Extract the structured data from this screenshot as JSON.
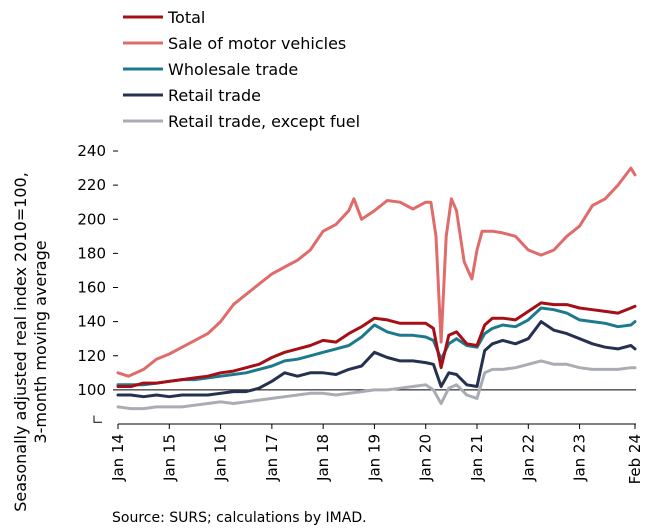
{
  "chart_data": {
    "type": "line",
    "ylabel_line1": "Seasonally adjusted real index 2010=100,",
    "ylabel_line2": "3-month moving average",
    "source": "Source: SURS; calculations by IMAD.",
    "ylim": [
      80,
      240
    ],
    "y_ticks": [
      240,
      220,
      200,
      180,
      160,
      140,
      120,
      100
    ],
    "y_tick_labels": [
      "240",
      "220",
      "200",
      "180",
      "160",
      "140",
      "120",
      "100"
    ],
    "x_range": [
      2014.0,
      2024.1
    ],
    "x_ticks": [
      2014,
      2015,
      2016,
      2017,
      2018,
      2019,
      2020,
      2021,
      2022,
      2023,
      2024.08
    ],
    "x_tick_labels": [
      "Jan 14",
      "Jan 15",
      "Jan 16",
      "Jan 17",
      "Jan 18",
      "Jan 19",
      "Jan 20",
      "Jan 21",
      "Jan 22",
      "Jan 23",
      "Feb 24"
    ],
    "reference_line": 100,
    "grid": false,
    "legend_position": "top-left",
    "series": [
      {
        "name": "Total",
        "color": "#A50F15",
        "points": [
          [
            2014.0,
            102
          ],
          [
            2014.25,
            102
          ],
          [
            2014.5,
            104
          ],
          [
            2014.75,
            104
          ],
          [
            2015.0,
            105
          ],
          [
            2015.25,
            106
          ],
          [
            2015.5,
            107
          ],
          [
            2015.75,
            108
          ],
          [
            2016.0,
            110
          ],
          [
            2016.25,
            111
          ],
          [
            2016.5,
            113
          ],
          [
            2016.75,
            115
          ],
          [
            2017.0,
            119
          ],
          [
            2017.25,
            122
          ],
          [
            2017.5,
            124
          ],
          [
            2017.75,
            126
          ],
          [
            2018.0,
            129
          ],
          [
            2018.25,
            128
          ],
          [
            2018.5,
            133
          ],
          [
            2018.75,
            137
          ],
          [
            2019.0,
            142
          ],
          [
            2019.25,
            141
          ],
          [
            2019.5,
            139
          ],
          [
            2019.75,
            139
          ],
          [
            2020.0,
            139
          ],
          [
            2020.15,
            136
          ],
          [
            2020.3,
            113
          ],
          [
            2020.45,
            132
          ],
          [
            2020.6,
            134
          ],
          [
            2020.8,
            127
          ],
          [
            2021.0,
            126
          ],
          [
            2021.15,
            138
          ],
          [
            2021.3,
            142
          ],
          [
            2021.5,
            142
          ],
          [
            2021.75,
            141
          ],
          [
            2022.0,
            146
          ],
          [
            2022.25,
            151
          ],
          [
            2022.5,
            150
          ],
          [
            2022.75,
            150
          ],
          [
            2023.0,
            148
          ],
          [
            2023.25,
            147
          ],
          [
            2023.5,
            146
          ],
          [
            2023.75,
            145
          ],
          [
            2024.0,
            148
          ],
          [
            2024.08,
            149
          ]
        ]
      },
      {
        "name": "Sale of motor vehicles",
        "color": "#E06B6B",
        "points": [
          [
            2014.0,
            110
          ],
          [
            2014.2,
            108
          ],
          [
            2014.5,
            112
          ],
          [
            2014.75,
            118
          ],
          [
            2015.0,
            121
          ],
          [
            2015.25,
            125
          ],
          [
            2015.5,
            129
          ],
          [
            2015.75,
            133
          ],
          [
            2016.0,
            140
          ],
          [
            2016.25,
            150
          ],
          [
            2016.5,
            156
          ],
          [
            2016.75,
            162
          ],
          [
            2017.0,
            168
          ],
          [
            2017.25,
            172
          ],
          [
            2017.5,
            176
          ],
          [
            2017.75,
            182
          ],
          [
            2018.0,
            193
          ],
          [
            2018.25,
            197
          ],
          [
            2018.5,
            205
          ],
          [
            2018.6,
            212
          ],
          [
            2018.75,
            200
          ],
          [
            2019.0,
            205
          ],
          [
            2019.25,
            211
          ],
          [
            2019.5,
            210
          ],
          [
            2019.75,
            206
          ],
          [
            2020.0,
            210
          ],
          [
            2020.1,
            210
          ],
          [
            2020.2,
            190
          ],
          [
            2020.3,
            128
          ],
          [
            2020.4,
            190
          ],
          [
            2020.5,
            212
          ],
          [
            2020.6,
            205
          ],
          [
            2020.75,
            175
          ],
          [
            2020.9,
            165
          ],
          [
            2021.0,
            182
          ],
          [
            2021.1,
            193
          ],
          [
            2021.3,
            193
          ],
          [
            2021.5,
            192
          ],
          [
            2021.75,
            190
          ],
          [
            2022.0,
            182
          ],
          [
            2022.25,
            179
          ],
          [
            2022.5,
            182
          ],
          [
            2022.75,
            190
          ],
          [
            2023.0,
            196
          ],
          [
            2023.25,
            208
          ],
          [
            2023.5,
            212
          ],
          [
            2023.75,
            220
          ],
          [
            2024.0,
            230
          ],
          [
            2024.08,
            226
          ]
        ]
      },
      {
        "name": "Wholesale trade",
        "color": "#1D7A8C",
        "points": [
          [
            2014.0,
            103
          ],
          [
            2014.25,
            103
          ],
          [
            2014.5,
            103
          ],
          [
            2014.75,
            104
          ],
          [
            2015.0,
            105
          ],
          [
            2015.25,
            106
          ],
          [
            2015.5,
            106
          ],
          [
            2015.75,
            107
          ],
          [
            2016.0,
            108
          ],
          [
            2016.25,
            109
          ],
          [
            2016.5,
            110
          ],
          [
            2016.75,
            112
          ],
          [
            2017.0,
            114
          ],
          [
            2017.25,
            117
          ],
          [
            2017.5,
            118
          ],
          [
            2017.75,
            120
          ],
          [
            2018.0,
            122
          ],
          [
            2018.25,
            124
          ],
          [
            2018.5,
            126
          ],
          [
            2018.75,
            131
          ],
          [
            2019.0,
            138
          ],
          [
            2019.25,
            134
          ],
          [
            2019.5,
            132
          ],
          [
            2019.75,
            132
          ],
          [
            2020.0,
            131
          ],
          [
            2020.15,
            129
          ],
          [
            2020.3,
            118
          ],
          [
            2020.45,
            127
          ],
          [
            2020.6,
            130
          ],
          [
            2020.8,
            126
          ],
          [
            2021.0,
            125
          ],
          [
            2021.15,
            133
          ],
          [
            2021.3,
            136
          ],
          [
            2021.5,
            138
          ],
          [
            2021.75,
            137
          ],
          [
            2022.0,
            141
          ],
          [
            2022.25,
            148
          ],
          [
            2022.5,
            147
          ],
          [
            2022.75,
            145
          ],
          [
            2023.0,
            141
          ],
          [
            2023.25,
            140
          ],
          [
            2023.5,
            139
          ],
          [
            2023.75,
            137
          ],
          [
            2024.0,
            138
          ],
          [
            2024.08,
            140
          ]
        ]
      },
      {
        "name": "Retail trade",
        "color": "#26304F",
        "points": [
          [
            2014.0,
            97
          ],
          [
            2014.25,
            97
          ],
          [
            2014.5,
            96
          ],
          [
            2014.75,
            97
          ],
          [
            2015.0,
            96
          ],
          [
            2015.25,
            97
          ],
          [
            2015.5,
            97
          ],
          [
            2015.75,
            97
          ],
          [
            2016.0,
            98
          ],
          [
            2016.25,
            99
          ],
          [
            2016.5,
            99
          ],
          [
            2016.75,
            101
          ],
          [
            2017.0,
            105
          ],
          [
            2017.25,
            110
          ],
          [
            2017.5,
            108
          ],
          [
            2017.75,
            110
          ],
          [
            2018.0,
            110
          ],
          [
            2018.25,
            109
          ],
          [
            2018.5,
            112
          ],
          [
            2018.75,
            114
          ],
          [
            2019.0,
            122
          ],
          [
            2019.25,
            119
          ],
          [
            2019.5,
            117
          ],
          [
            2019.75,
            117
          ],
          [
            2020.0,
            116
          ],
          [
            2020.15,
            115
          ],
          [
            2020.3,
            102
          ],
          [
            2020.45,
            110
          ],
          [
            2020.6,
            109
          ],
          [
            2020.8,
            103
          ],
          [
            2021.0,
            102
          ],
          [
            2021.15,
            123
          ],
          [
            2021.3,
            127
          ],
          [
            2021.5,
            129
          ],
          [
            2021.75,
            127
          ],
          [
            2022.0,
            130
          ],
          [
            2022.25,
            140
          ],
          [
            2022.5,
            135
          ],
          [
            2022.75,
            133
          ],
          [
            2023.0,
            130
          ],
          [
            2023.25,
            127
          ],
          [
            2023.5,
            125
          ],
          [
            2023.75,
            124
          ],
          [
            2024.0,
            126
          ],
          [
            2024.08,
            124
          ]
        ]
      },
      {
        "name": "Retail trade, except fuel",
        "color": "#A9ADB3",
        "points": [
          [
            2014.0,
            90
          ],
          [
            2014.25,
            89
          ],
          [
            2014.5,
            89
          ],
          [
            2014.75,
            90
          ],
          [
            2015.0,
            90
          ],
          [
            2015.25,
            90
          ],
          [
            2015.5,
            91
          ],
          [
            2015.75,
            92
          ],
          [
            2016.0,
            93
          ],
          [
            2016.25,
            92
          ],
          [
            2016.5,
            93
          ],
          [
            2016.75,
            94
          ],
          [
            2017.0,
            95
          ],
          [
            2017.25,
            96
          ],
          [
            2017.5,
            97
          ],
          [
            2017.75,
            98
          ],
          [
            2018.0,
            98
          ],
          [
            2018.25,
            97
          ],
          [
            2018.5,
            98
          ],
          [
            2018.75,
            99
          ],
          [
            2019.0,
            100
          ],
          [
            2019.25,
            100
          ],
          [
            2019.5,
            101
          ],
          [
            2019.75,
            102
          ],
          [
            2020.0,
            103
          ],
          [
            2020.15,
            100
          ],
          [
            2020.3,
            92
          ],
          [
            2020.45,
            101
          ],
          [
            2020.6,
            103
          ],
          [
            2020.8,
            97
          ],
          [
            2021.0,
            95
          ],
          [
            2021.15,
            110
          ],
          [
            2021.3,
            112
          ],
          [
            2021.5,
            112
          ],
          [
            2021.75,
            113
          ],
          [
            2022.0,
            115
          ],
          [
            2022.25,
            117
          ],
          [
            2022.5,
            115
          ],
          [
            2022.75,
            115
          ],
          [
            2023.0,
            113
          ],
          [
            2023.25,
            112
          ],
          [
            2023.5,
            112
          ],
          [
            2023.75,
            112
          ],
          [
            2024.0,
            113
          ],
          [
            2024.08,
            113
          ]
        ]
      }
    ]
  }
}
